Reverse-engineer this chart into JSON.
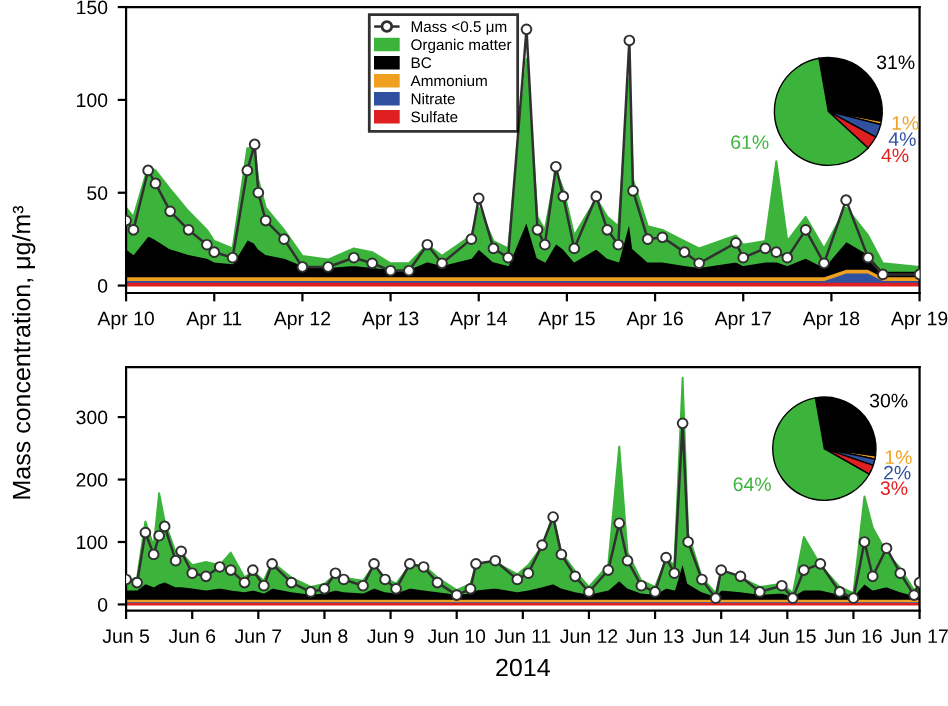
{
  "chart_data": [
    {
      "type": "area",
      "stacked": true,
      "ylabel": "Mass concentration, μg/m³",
      "legend": "top",
      "grid": false,
      "x": [
        "2014-04-10T00:00",
        "2014-04-10T02:00",
        "2014-04-10T06:00",
        "2014-04-10T08:00",
        "2014-04-10T12:00",
        "2014-04-10T17:00",
        "2014-04-10T22:00",
        "2014-04-11T00:00",
        "2014-04-11T05:00",
        "2014-04-11T09:00",
        "2014-04-11T11:00",
        "2014-04-11T12:00",
        "2014-04-11T14:00",
        "2014-04-11T19:00",
        "2014-04-12T00:00",
        "2014-04-12T07:00",
        "2014-04-12T14:00",
        "2014-04-12T19:00",
        "2014-04-13T00:00",
        "2014-04-13T05:00",
        "2014-04-13T10:00",
        "2014-04-13T14:00",
        "2014-04-13T22:00",
        "2014-04-14T00:00",
        "2014-04-14T04:00",
        "2014-04-14T08:00",
        "2014-04-14T13:00",
        "2014-04-14T16:00",
        "2014-04-14T18:00",
        "2014-04-14T21:00",
        "2014-04-14T23:00",
        "2014-04-15T02:00",
        "2014-04-15T08:00",
        "2014-04-15T11:00",
        "2014-04-15T14:00",
        "2014-04-15T17:00",
        "2014-04-15T18:00",
        "2014-04-15T22:00",
        "2014-04-16T02:00",
        "2014-04-16T08:00",
        "2014-04-16T12:00",
        "2014-04-16T22:00",
        "2014-04-17T00:00",
        "2014-04-17T06:00",
        "2014-04-17T09:00",
        "2014-04-17T12:00",
        "2014-04-17T17:00",
        "2014-04-17T22:00",
        "2014-04-18T04:00",
        "2014-04-18T10:00",
        "2014-04-18T14:00",
        "2014-04-19T00:00"
      ],
      "series": [
        {
          "name": "Sulfate",
          "color": "#e02020",
          "values": [
            2,
            2,
            2,
            2,
            2,
            2,
            2,
            2,
            2,
            2,
            2,
            2,
            2,
            2,
            2,
            2,
            2,
            2,
            2,
            2,
            2,
            2,
            2,
            2,
            2,
            2,
            2,
            2,
            2,
            2,
            2,
            2,
            2,
            2,
            2,
            2,
            2,
            2,
            2,
            2,
            2,
            2,
            2,
            2,
            2,
            2,
            2,
            2,
            2,
            2,
            2,
            2
          ]
        },
        {
          "name": "Nitrate",
          "color": "#3050a0",
          "values": [
            1,
            1,
            1,
            1,
            1,
            1,
            1,
            1,
            1,
            1,
            1,
            1,
            1,
            1,
            1,
            1,
            1,
            1,
            1,
            1,
            1,
            1,
            1,
            1,
            1,
            1,
            1,
            1,
            1,
            1,
            1,
            1,
            1,
            1,
            1,
            1,
            1,
            1,
            1,
            1,
            1,
            1,
            1,
            1,
            1,
            1,
            1,
            1,
            5,
            5,
            1,
            1
          ]
        },
        {
          "name": "Ammonium",
          "color": "#f0a020",
          "values": [
            2,
            2,
            2,
            2,
            2,
            2,
            2,
            2,
            2,
            2,
            2,
            2,
            2,
            2,
            2,
            2,
            2,
            2,
            2,
            2,
            2,
            2,
            2,
            2,
            2,
            2,
            2,
            2,
            2,
            2,
            2,
            2,
            2,
            2,
            2,
            2,
            2,
            2,
            2,
            2,
            2,
            2,
            2,
            2,
            2,
            2,
            2,
            2,
            2,
            2,
            2,
            2
          ]
        },
        {
          "name": "BC",
          "color": "#000000",
          "values": [
            15,
            12,
            22,
            20,
            15,
            12,
            10,
            8,
            7,
            20,
            18,
            15,
            12,
            10,
            6,
            5,
            6,
            5,
            4,
            4,
            8,
            6,
            10,
            15,
            8,
            6,
            30,
            10,
            8,
            18,
            15,
            8,
            15,
            10,
            8,
            30,
            15,
            8,
            8,
            6,
            5,
            8,
            6,
            8,
            8,
            6,
            10,
            5,
            15,
            8,
            3,
            3
          ]
        },
        {
          "name": "Organic matter",
          "color": "#3cb43c",
          "values": [
            22,
            20,
            37,
            37,
            32,
            23,
            15,
            11,
            8,
            49,
            51,
            37,
            25,
            15,
            5,
            4,
            9,
            8,
            3,
            3,
            9,
            5,
            12,
            22,
            11,
            9,
            87,
            22,
            17,
            39,
            32,
            14,
            27,
            22,
            19,
            77,
            37,
            19,
            17,
            13,
            10,
            14,
            11,
            11,
            54,
            13,
            22,
            10,
            18,
            10,
            4,
            2
          ]
        },
        {
          "name": "Mass <0.5 μm",
          "type": "line",
          "marker": "circle",
          "line_style": "solid",
          "color": "#303030",
          "values": [
            35,
            30,
            62,
            55,
            40,
            30,
            22,
            18,
            15,
            62,
            76,
            50,
            35,
            25,
            10,
            10,
            15,
            12,
            8,
            8,
            22,
            12,
            25,
            47,
            20,
            15,
            138,
            30,
            22,
            64,
            48,
            20,
            48,
            30,
            22,
            132,
            51,
            25,
            26,
            18,
            12,
            23,
            15,
            20,
            18,
            15,
            30,
            12,
            46,
            15,
            6,
            6
          ]
        }
      ],
      "xlim": [
        "2014-04-10T00:00",
        "2014-04-19T00:00"
      ],
      "xticks": [
        {
          "value": "2014-04-10",
          "label": "Apr 10"
        },
        {
          "value": "2014-04-11",
          "label": "Apr 11"
        },
        {
          "value": "2014-04-12",
          "label": "Apr 12"
        },
        {
          "value": "2014-04-13",
          "label": "Apr 13"
        },
        {
          "value": "2014-04-14",
          "label": "Apr 14"
        },
        {
          "value": "2014-04-15",
          "label": "Apr 15"
        },
        {
          "value": "2014-04-16",
          "label": "Apr 16"
        },
        {
          "value": "2014-04-17",
          "label": "Apr 17"
        },
        {
          "value": "2014-04-18",
          "label": "Apr 18"
        },
        {
          "value": "2014-04-19",
          "label": "Apr 19"
        }
      ],
      "ylim": [
        -4,
        150
      ],
      "yticks": [
        0,
        50,
        100,
        150
      ]
    },
    {
      "type": "area",
      "stacked": true,
      "xlabel": "2014",
      "grid": false,
      "legend": false,
      "x": [
        "2014-06-05T00:00",
        "2014-06-05T04:00",
        "2014-06-05T07:00",
        "2014-06-05T10:00",
        "2014-06-05T12:00",
        "2014-06-05T14:00",
        "2014-06-05T18:00",
        "2014-06-05T20:00",
        "2014-06-06T00:00",
        "2014-06-06T05:00",
        "2014-06-06T10:00",
        "2014-06-06T14:00",
        "2014-06-06T19:00",
        "2014-06-06T22:00",
        "2014-06-07T02:00",
        "2014-06-07T05:00",
        "2014-06-07T12:00",
        "2014-06-07T19:00",
        "2014-06-08T00:00",
        "2014-06-08T04:00",
        "2014-06-08T07:00",
        "2014-06-08T14:00",
        "2014-06-08T18:00",
        "2014-06-08T22:00",
        "2014-06-09T02:00",
        "2014-06-09T07:00",
        "2014-06-09T12:00",
        "2014-06-09T17:00",
        "2014-06-10T00:00",
        "2014-06-10T05:00",
        "2014-06-10T07:00",
        "2014-06-10T14:00",
        "2014-06-10T22:00",
        "2014-06-11T02:00",
        "2014-06-11T07:00",
        "2014-06-11T11:00",
        "2014-06-11T14:00",
        "2014-06-11T19:00",
        "2014-06-12T00:00",
        "2014-06-12T07:00",
        "2014-06-12T11:00",
        "2014-06-12T14:00",
        "2014-06-12T19:00",
        "2014-06-13T00:00",
        "2014-06-13T04:00",
        "2014-06-13T07:00",
        "2014-06-13T10:00",
        "2014-06-13T12:00",
        "2014-06-13T17:00",
        "2014-06-13T22:00",
        "2014-06-14T00:00",
        "2014-06-14T07:00",
        "2014-06-14T14:00",
        "2014-06-14T22:00",
        "2014-06-15T02:00",
        "2014-06-15T06:00",
        "2014-06-15T12:00",
        "2014-06-15T19:00",
        "2014-06-16T00:00",
        "2014-06-16T04:00",
        "2014-06-16T07:00",
        "2014-06-16T12:00",
        "2014-06-16T17:00",
        "2014-06-16T22:00",
        "2014-06-17T00:00"
      ],
      "series": [
        {
          "color": "#e02020",
          "values": [
            4,
            4,
            4,
            4,
            4,
            4,
            4,
            4,
            4,
            4,
            4,
            4,
            4,
            4,
            4,
            4,
            4,
            4,
            4,
            4,
            4,
            4,
            4,
            4,
            4,
            4,
            4,
            4,
            4,
            4,
            4,
            4,
            4,
            4,
            4,
            4,
            4,
            4,
            4,
            4,
            4,
            4,
            4,
            4,
            4,
            4,
            4,
            4,
            4,
            4,
            4,
            4,
            4,
            4,
            4,
            4,
            4,
            4,
            4,
            4,
            4,
            4,
            4,
            4,
            4
          ]
        },
        {
          "color": "#3050a0",
          "values": [
            1,
            1,
            1,
            1,
            1,
            1,
            1,
            1,
            1,
            1,
            1,
            1,
            1,
            1,
            1,
            1,
            1,
            1,
            1,
            1,
            1,
            1,
            1,
            1,
            1,
            1,
            1,
            1,
            1,
            1,
            1,
            1,
            1,
            1,
            1,
            1,
            1,
            1,
            1,
            1,
            1,
            1,
            1,
            1,
            1,
            1,
            1,
            1,
            1,
            1,
            1,
            1,
            1,
            1,
            1,
            1,
            1,
            1,
            1,
            1,
            1,
            1,
            1,
            1,
            1
          ]
        },
        {
          "color": "#f0a020",
          "values": [
            4,
            4,
            4,
            4,
            4,
            4,
            4,
            4,
            4,
            4,
            4,
            4,
            4,
            4,
            4,
            4,
            4,
            4,
            4,
            4,
            4,
            4,
            4,
            4,
            4,
            4,
            4,
            4,
            4,
            4,
            4,
            4,
            4,
            4,
            4,
            4,
            4,
            4,
            4,
            4,
            4,
            4,
            4,
            4,
            4,
            4,
            4,
            4,
            4,
            4,
            4,
            4,
            4,
            4,
            4,
            4,
            4,
            4,
            4,
            4,
            4,
            4,
            4,
            4,
            4
          ]
        },
        {
          "color": "#000000",
          "values": [
            15,
            15,
            25,
            20,
            25,
            28,
            20,
            20,
            18,
            15,
            18,
            15,
            12,
            15,
            10,
            18,
            12,
            8,
            10,
            15,
            12,
            10,
            18,
            12,
            10,
            18,
            15,
            12,
            8,
            10,
            15,
            18,
            12,
            15,
            20,
            25,
            18,
            12,
            8,
            15,
            30,
            18,
            10,
            8,
            18,
            15,
            60,
            25,
            12,
            5,
            15,
            12,
            8,
            10,
            5,
            15,
            15,
            8,
            5,
            25,
            15,
            20,
            12,
            6,
            10
          ]
        },
        {
          "color": "#3cb43c",
          "values": [
            14,
            19,
            99,
            64,
            144,
            96,
            54,
            54,
            36,
            44,
            36,
            59,
            22,
            29,
            19,
            41,
            22,
            11,
            14,
            24,
            22,
            19,
            36,
            22,
            14,
            36,
            39,
            22,
            6,
            14,
            39,
            41,
            27,
            39,
            64,
            109,
            56,
            32,
            11,
            39,
            214,
            56,
            19,
            11,
            46,
            39,
            294,
            79,
            22,
            4,
            29,
            22,
            11,
            14,
            4,
            84,
            39,
            11,
            4,
            139,
            99,
            54,
            37,
            8,
            14
          ]
        },
        {
          "type": "line",
          "marker": "circle",
          "line_style": "solid",
          "color": "#303030",
          "values": [
            40,
            35,
            115,
            80,
            110,
            125,
            70,
            85,
            50,
            45,
            60,
            55,
            35,
            55,
            30,
            65,
            35,
            20,
            25,
            50,
            40,
            30,
            65,
            40,
            25,
            65,
            60,
            35,
            15,
            25,
            65,
            70,
            40,
            50,
            95,
            140,
            80,
            45,
            20,
            55,
            130,
            70,
            30,
            20,
            75,
            50,
            290,
            100,
            40,
            10,
            55,
            45,
            20,
            30,
            10,
            55,
            65,
            20,
            10,
            100,
            45,
            90,
            50,
            15,
            35
          ]
        }
      ],
      "xlim": [
        "2014-06-05T00:00",
        "2014-06-17T00:00"
      ],
      "xticks": [
        {
          "value": "2014-06-05",
          "label": "Jun 5"
        },
        {
          "value": "2014-06-06",
          "label": "Jun 6"
        },
        {
          "value": "2014-06-07",
          "label": "Jun 7"
        },
        {
          "value": "2014-06-08",
          "label": "Jun 8"
        },
        {
          "value": "2014-06-09",
          "label": "Jun 9"
        },
        {
          "value": "2014-06-10",
          "label": "Jun 10"
        },
        {
          "value": "2014-06-11",
          "label": "Jun 11"
        },
        {
          "value": "2014-06-12",
          "label": "Jun 12"
        },
        {
          "value": "2014-06-13",
          "label": "Jun 13"
        },
        {
          "value": "2014-06-14",
          "label": "Jun 14"
        },
        {
          "value": "2014-06-15",
          "label": "Jun 15"
        },
        {
          "value": "2014-06-16",
          "label": "Jun 16"
        },
        {
          "value": "2014-06-17",
          "label": "Jun 17"
        }
      ],
      "ylim": [
        -10,
        380
      ],
      "yticks": [
        0,
        100,
        200,
        300
      ]
    },
    {
      "type": "pie",
      "categories": [
        null,
        null,
        null,
        null,
        null
      ],
      "values": [
        31,
        1,
        4,
        4,
        61
      ],
      "colors": [
        "#000000",
        "#f0a020",
        "#3050a0",
        "#e02020",
        "#3cb43c"
      ],
      "value_labels": [
        "31%",
        "1%",
        "4%",
        "4%",
        "61%"
      ]
    },
    {
      "type": "pie",
      "categories": [
        null,
        null,
        null,
        null,
        null
      ],
      "values": [
        30,
        1,
        2,
        3,
        64
      ],
      "colors": [
        "#000000",
        "#f0a020",
        "#3050a0",
        "#e02020",
        "#3cb43c"
      ],
      "value_labels": [
        "30%",
        "1%",
        "2%",
        "3%",
        "64%"
      ]
    }
  ]
}
